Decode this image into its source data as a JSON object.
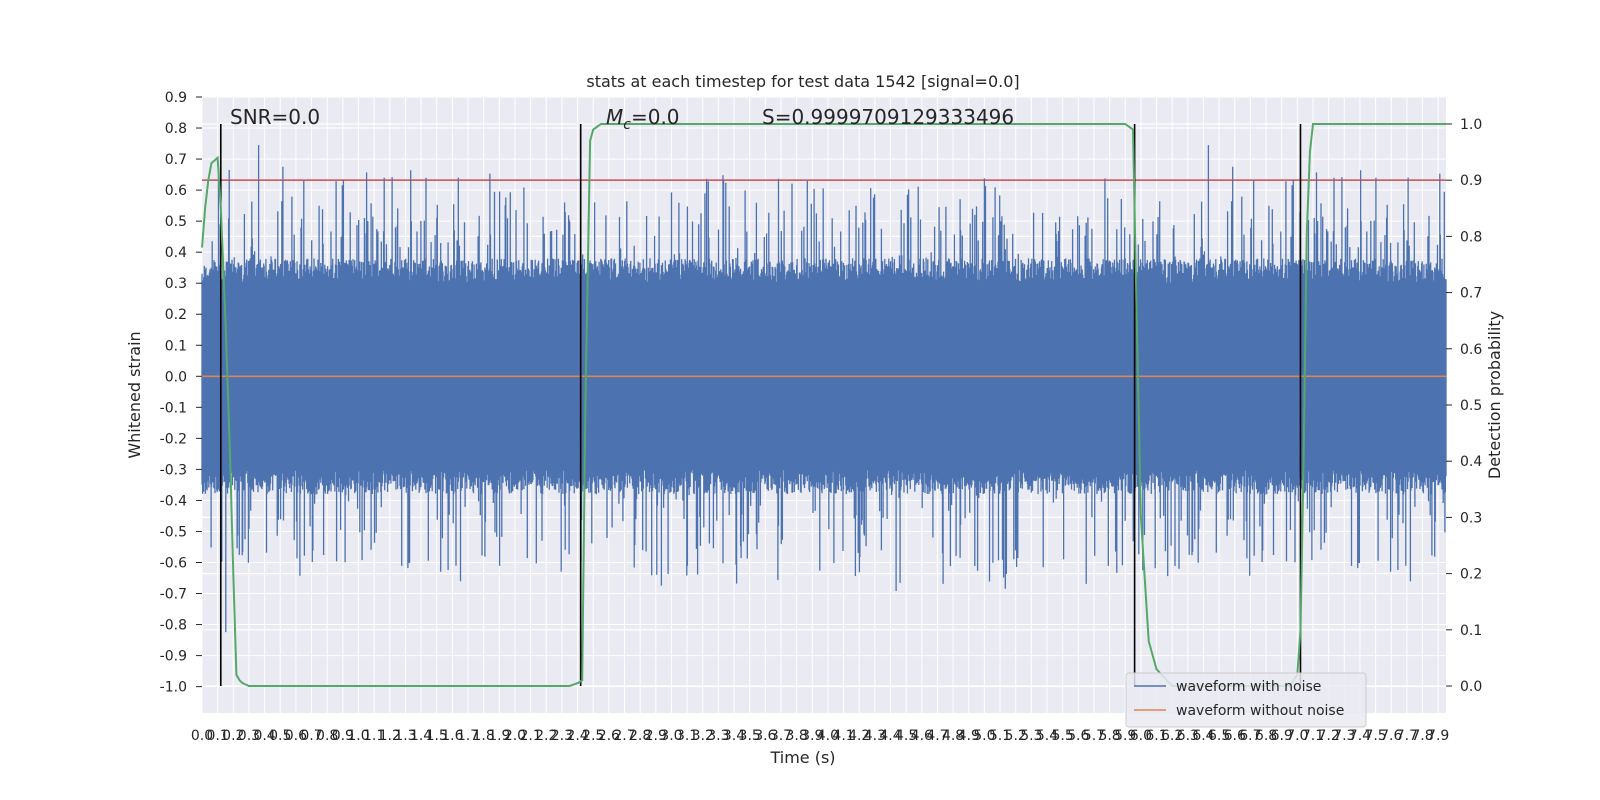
{
  "chart_data": {
    "type": "line",
    "title": "stats at each timestep for test data 1542 [signal=0.0]",
    "xlabel": "Time (s)",
    "ylabel": "Whitened strain",
    "y2label": "Detection probability",
    "xlim": [
      0.0,
      7.95
    ],
    "ylim": [
      -1.085,
      0.9
    ],
    "y2lim": [
      -0.048,
      1.048
    ],
    "grid": true,
    "x_tick_step": 0.1,
    "x_tick_count": 80,
    "y_ticks": [
      0.9,
      0.8,
      0.7,
      0.6,
      0.5,
      0.4,
      0.3,
      0.2,
      0.1,
      0.0,
      -0.1,
      -0.2,
      -0.3,
      -0.4,
      -0.5,
      -0.6,
      -0.7,
      -0.8,
      -0.9,
      -1.0
    ],
    "y2_ticks": [
      1.0,
      0.9,
      0.8,
      0.7,
      0.6,
      0.5,
      0.4,
      0.3,
      0.2,
      0.1,
      0.0
    ],
    "annotations": {
      "snr": "SNR=0.0",
      "mc_symbol": "M",
      "mc_sub": "c",
      "mc_value": "=0.0",
      "s": "S=0.9999709129333496"
    },
    "series": [
      {
        "name": "waveform with noise",
        "color": "#4c72b0",
        "kind": "noise",
        "typical_amplitude": 0.3,
        "peak_max": 0.81,
        "peak_min": -1.0,
        "x_start": 0.0,
        "x_end": 7.95
      },
      {
        "name": "waveform without noise",
        "color": "#dd8452",
        "kind": "constant",
        "y": 0.0
      }
    ],
    "detection_probability": {
      "color": "#55a868",
      "x": [
        0.0,
        0.02,
        0.04,
        0.06,
        0.1,
        0.12,
        0.15,
        0.18,
        0.2,
        0.22,
        0.24,
        0.26,
        0.3,
        0.4,
        0.6,
        1.0,
        2.0,
        2.35,
        2.4,
        2.43,
        2.45,
        2.48,
        2.5,
        2.55,
        3.0,
        5.0,
        5.9,
        5.95,
        5.97,
        6.0,
        6.05,
        6.1,
        6.2,
        6.5,
        6.8,
        6.95,
        7.0,
        7.02,
        7.04,
        7.06,
        7.08,
        7.1,
        7.15,
        7.95
      ],
      "y": [
        0.78,
        0.85,
        0.9,
        0.93,
        0.94,
        0.85,
        0.65,
        0.4,
        0.2,
        0.02,
        0.01,
        0.005,
        0.0,
        0.0,
        0.0,
        0.0,
        0.0,
        0.0,
        0.005,
        0.01,
        0.5,
        0.97,
        0.99,
        1.0,
        1.0,
        1.0,
        1.0,
        0.99,
        0.7,
        0.3,
        0.08,
        0.03,
        0.0,
        0.0,
        0.0,
        0.0,
        0.02,
        0.1,
        0.4,
        0.8,
        0.95,
        1.0,
        1.0,
        1.0
      ]
    },
    "threshold": {
      "color": "#c44e52",
      "y2": 0.9
    },
    "vertical_lines": {
      "color": "#000000",
      "x": [
        0.12,
        2.42,
        5.96,
        7.02
      ]
    },
    "legend_position": "lower right"
  }
}
